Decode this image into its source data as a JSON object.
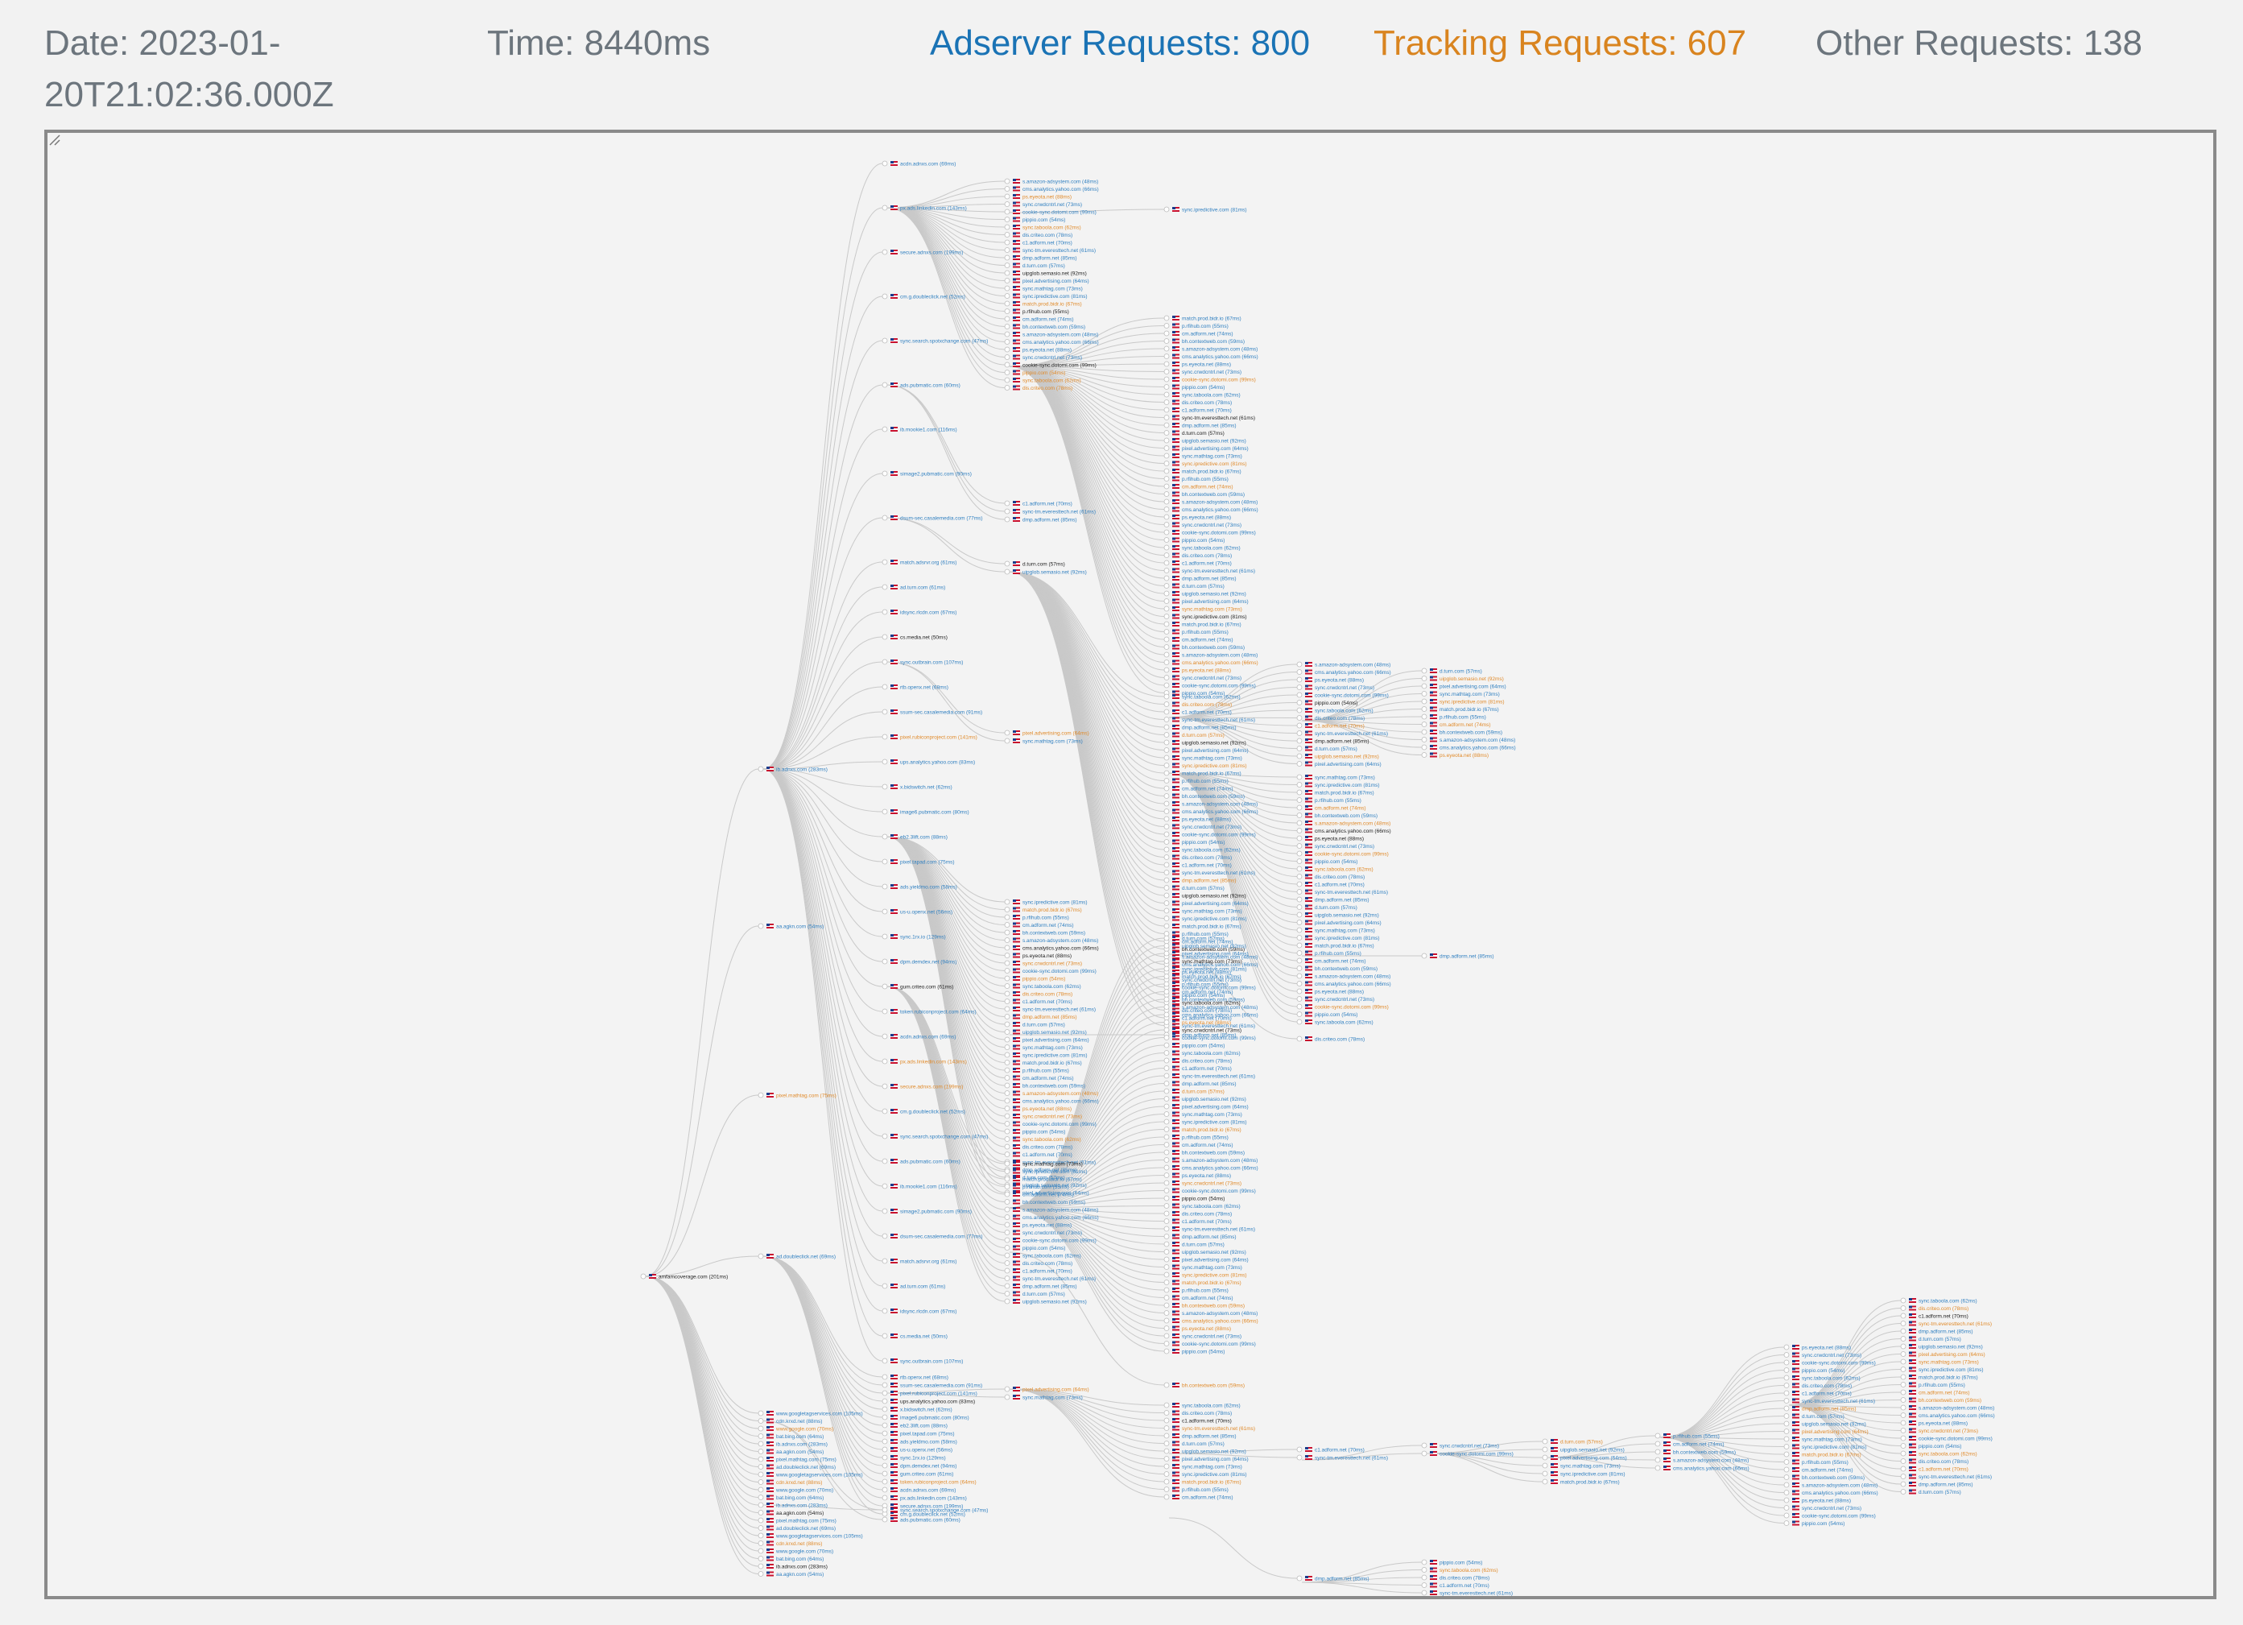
{
  "header": {
    "date": "Date: 2023-01-20T21:02:36.000Z",
    "time": "Time: 8440ms",
    "adserver": "Adserver Requests: 800",
    "tracking": "Tracking Requests: 607",
    "other": "Other Requests: 138"
  },
  "colors": {
    "date": "#6c757d",
    "time": "#6c757d",
    "adserver": "#1a73b5",
    "tracking": "#d9841f",
    "other": "#6c757d",
    "node_adserver": "#2f7fc0",
    "node_tracking": "#e08a2a",
    "node_other": "#222222",
    "edge": "#c9c9c9",
    "frame_border": "#8a8a8a",
    "background": "#f3f3f3"
  },
  "graph": {
    "root": "amfamcoverage.com (201ms)",
    "level1": [
      "ib.adnxs.com (283ms)",
      "aa.agkn.com (54ms)",
      "pixel.mathtag.com (75ms)",
      "ad.doubleclick.net (69ms)",
      "www.googletagservices.com (105ms)",
      "cdn.krxd.net (88ms)",
      "www.google.com (70ms)",
      "bat.bing.com (64ms)"
    ],
    "level2_samples": [
      "acdn.adnxs.com (69ms)",
      "px.ads.linkedin.com (143ms)",
      "secure.adnxs.com (199ms)",
      "cm.g.doubleclick.net (52ms)",
      "sync.search.spotxchange.com (47ms)",
      "ads.pubmatic.com (60ms)",
      "ib.mookie1.com (116ms)",
      "simage2.pubmatic.com (90ms)",
      "dsum-sec.casalemedia.com (77ms)",
      "match.adsrvr.org (61ms)",
      "ad.turn.com (61ms)",
      "idsync.rlcdn.com (67ms)",
      "cs.media.net (50ms)",
      "sync.outbrain.com (107ms)",
      "rtb.openx.net (68ms)",
      "ssum-sec.casalemedia.com (91ms)",
      "pixel.rubiconproject.com (141ms)",
      "ups.analytics.yahoo.com (83ms)",
      "x.bidswitch.net (62ms)",
      "image6.pubmatic.com (80ms)",
      "eb2.3lift.com (88ms)",
      "pixel.tapad.com (75ms)",
      "ads.yieldmo.com (58ms)",
      "us-u.openx.net (56ms)",
      "sync.1rx.io (129ms)",
      "dpm.demdex.net (94ms)",
      "gum.criteo.com (61ms)",
      "token.rubiconproject.com (64ms)"
    ],
    "level3_samples": [
      "s.amazon-adsystem.com (48ms)",
      "cms.analytics.yahoo.com (66ms)",
      "ps.eyeota.net (88ms)",
      "sync.crwdcntrl.net (73ms)",
      "cookie-sync.dotomi.com (99ms)",
      "pippio.com (54ms)",
      "sync.taboola.com (62ms)",
      "dis.criteo.com (78ms)",
      "c1.adform.net (70ms)",
      "sync-tm.everesttech.net (61ms)",
      "dmp.adform.net (85ms)",
      "d.turn.com (57ms)",
      "uipglob.semasio.net (92ms)",
      "pixel.advertising.com (64ms)",
      "sync.mathtag.com (73ms)",
      "sync.ipredictive.com (81ms)",
      "match.prod.bidr.io (67ms)",
      "p.rfihub.com (55ms)",
      "cm.adform.net (74ms)",
      "bh.contextweb.com (59ms)"
    ],
    "level4_samples": [
      "cm.mgid.com (62ms)",
      "sync.srv.stackadapt.com (71ms)",
      "partners.tremorhub.com (80ms)",
      "rtb-csync.smartadserver.com (66ms)",
      "ssbsync.smartadserver.com (69ms)",
      "sync.adkernel.com (57ms)",
      "pbs.yahoo.com (53ms)",
      "csync.loopme.me (58ms)"
    ],
    "level5_samples": [
      "sync.ligatus.com (44ms)",
      "cs.admanmedia.com (52ms)",
      "x.dlx.addthis.com (67ms)",
      "sync.kargo.com (41ms)",
      "eus.rubiconproject.com (72ms)",
      "ads.travelaudience.com (60ms)",
      "gem.neuroads.com (58ms)",
      "dsp.adfarm1.adition.com (63ms)"
    ],
    "level6_samples": [
      "cookies.nextmillmedia.com (48ms)",
      "sync.colossusssp.com (50ms)",
      "ssp.disqus.com (61ms)",
      "sync.richaudience.com (44ms)",
      "pm.w55c.net (69ms)",
      "sync.bfmio.com (56ms)"
    ]
  }
}
